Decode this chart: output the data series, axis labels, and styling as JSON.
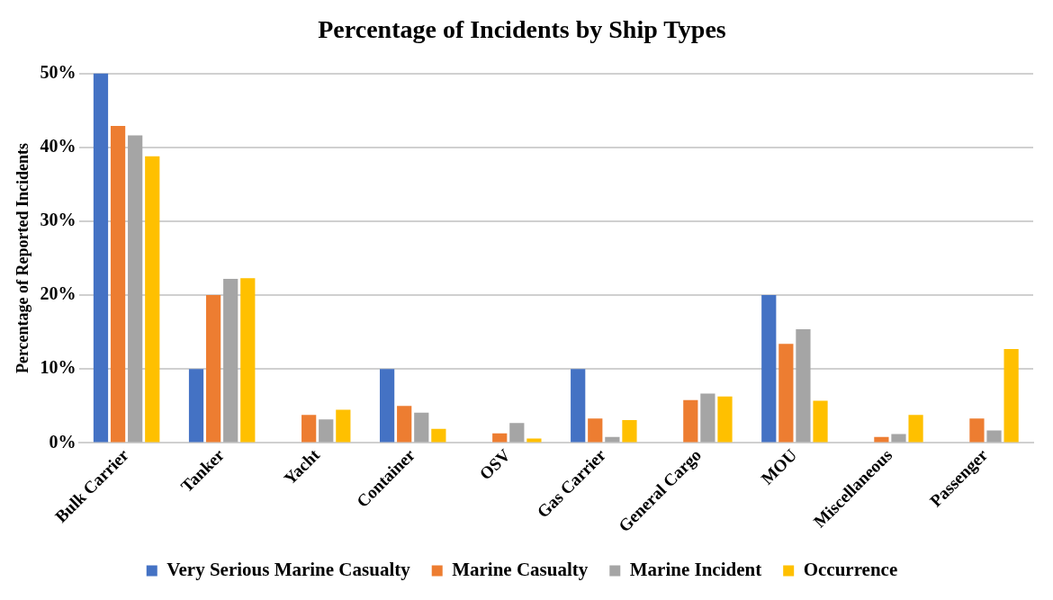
{
  "chart_data": {
    "type": "bar",
    "title": "Percentage of Incidents by Ship Types",
    "ylabel": "Percentage of Reported Incidents",
    "categories": [
      "Bulk Carrier",
      "Tanker",
      "Yacht",
      "Container",
      "OSV",
      "Gas Carrier",
      "General Cargo",
      "MOU",
      "Miscellaneous",
      "Passenger"
    ],
    "series": [
      {
        "name": "Very Serious Marine Casualty",
        "color": "#4472c4",
        "values": [
          50,
          10,
          0,
          10,
          0,
          10,
          0,
          20,
          0,
          0
        ]
      },
      {
        "name": "Marine Casualty",
        "color": "#ed7d31",
        "values": [
          42.9,
          20,
          3.8,
          5.0,
          1.3,
          3.3,
          5.8,
          13.4,
          0.8,
          3.3
        ]
      },
      {
        "name": "Marine Incident",
        "color": "#a5a5a5",
        "values": [
          41.6,
          22.2,
          3.2,
          4.1,
          2.7,
          0.8,
          6.7,
          15.4,
          1.2,
          1.7
        ]
      },
      {
        "name": "Occurrence",
        "color": "#ffc000",
        "values": [
          38.8,
          22.3,
          4.5,
          1.9,
          0.6,
          3.1,
          6.3,
          5.7,
          3.8,
          12.7
        ]
      }
    ],
    "ylim": [
      0,
      50
    ],
    "yticks": [
      {
        "value": 0,
        "label": "0%"
      },
      {
        "value": 10,
        "label": "10%"
      },
      {
        "value": 20,
        "label": "20%"
      },
      {
        "value": 30,
        "label": "30%"
      },
      {
        "value": 40,
        "label": "40%"
      },
      {
        "value": 50,
        "label": "50%"
      }
    ],
    "grid": "y",
    "legend": "bottom"
  }
}
